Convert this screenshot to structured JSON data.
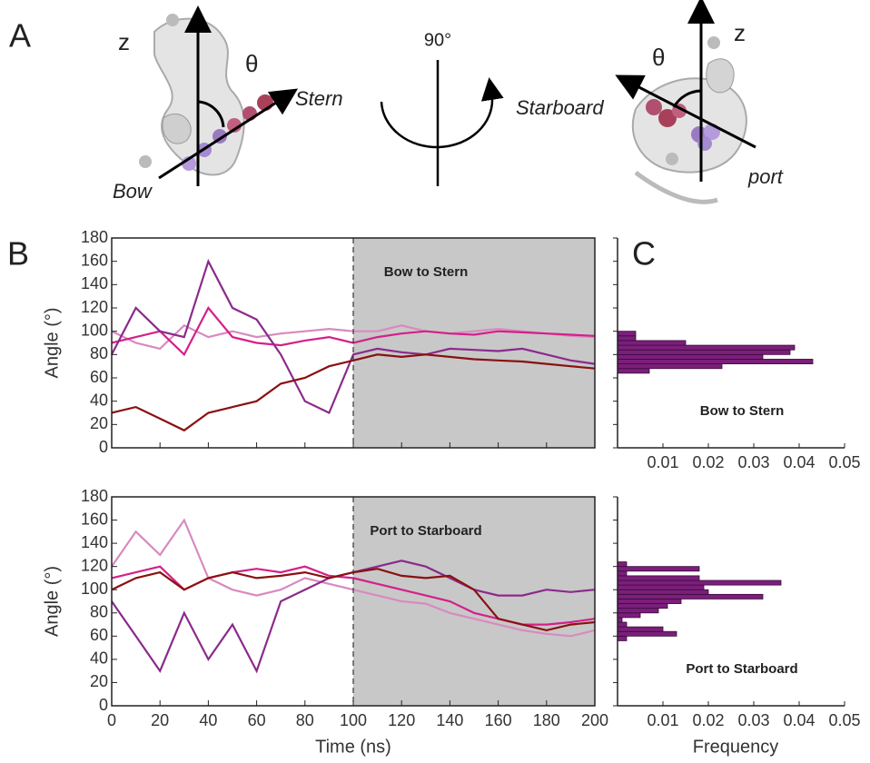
{
  "panel_labels": [
    "A",
    "B",
    "C"
  ],
  "panel_a": {
    "left": {
      "z": "z",
      "theta": "θ",
      "stern": "Stern",
      "bow": "Bow"
    },
    "rotation": "90°",
    "right": {
      "z": "z",
      "theta": "θ",
      "starboard": "Starboard",
      "port": "port"
    }
  },
  "chart_data": [
    {
      "type": "line",
      "annotation": "Bow to Stern",
      "y_label": "Angle (°)",
      "x": [
        0,
        10,
        20,
        30,
        40,
        50,
        60,
        70,
        80,
        90,
        100,
        110,
        120,
        130,
        140,
        150,
        160,
        170,
        180,
        190,
        200
      ],
      "series": [
        {
          "color": "#d88ac0",
          "values": [
            100,
            90,
            85,
            105,
            95,
            100,
            95,
            98,
            100,
            102,
            100,
            100,
            105,
            100,
            98,
            100,
            102,
            100,
            98,
            96,
            95
          ]
        },
        {
          "color": "#d4208a",
          "values": [
            90,
            95,
            100,
            80,
            120,
            95,
            90,
            88,
            92,
            95,
            90,
            95,
            98,
            100,
            98,
            97,
            100,
            99,
            98,
            97,
            96
          ]
        },
        {
          "color": "#8b2a8b",
          "values": [
            80,
            120,
            100,
            95,
            160,
            120,
            110,
            80,
            40,
            30,
            80,
            85,
            82,
            80,
            85,
            84,
            83,
            85,
            80,
            75,
            72
          ]
        },
        {
          "color": "#8b1010",
          "values": [
            30,
            35,
            25,
            15,
            30,
            35,
            40,
            55,
            60,
            70,
            75,
            80,
            78,
            80,
            78,
            76,
            75,
            74,
            72,
            70,
            68
          ]
        }
      ],
      "xlim": [
        0,
        200
      ],
      "ylim": [
        0,
        180
      ],
      "xticks": [
        0,
        20,
        40,
        60,
        80,
        100,
        120,
        140,
        160,
        180,
        200
      ],
      "yticks": [
        0,
        20,
        40,
        60,
        80,
        100,
        120,
        140,
        160,
        180
      ],
      "show_xtick_labels": false,
      "shade": [
        100,
        200
      ]
    },
    {
      "type": "histogram",
      "annotation": "Bow to Stern",
      "color": "#7b1f7b",
      "bins": [
        64,
        68,
        72,
        76,
        80,
        84,
        88,
        92,
        96,
        100
      ],
      "counts": [
        0.007,
        0.023,
        0.043,
        0.032,
        0.038,
        0.039,
        0.015,
        0.004,
        0.004
      ],
      "xlim": [
        0,
        0.05
      ],
      "ylim": [
        0,
        180
      ],
      "xticks": [
        0.01,
        0.02,
        0.03,
        0.04,
        0.05
      ],
      "yticks": [
        0,
        20,
        40,
        60,
        80,
        100,
        120,
        140,
        160,
        180
      ]
    },
    {
      "type": "line",
      "annotation": "Port to Starboard",
      "y_label": "Angle (°)",
      "x_label": "Time (ns)",
      "x": [
        0,
        10,
        20,
        30,
        40,
        50,
        60,
        70,
        80,
        90,
        100,
        110,
        120,
        130,
        140,
        150,
        160,
        170,
        180,
        190,
        200
      ],
      "series": [
        {
          "color": "#d88ac0",
          "values": [
            120,
            150,
            130,
            160,
            110,
            100,
            95,
            100,
            110,
            105,
            100,
            95,
            90,
            88,
            80,
            75,
            70,
            65,
            62,
            60,
            65
          ]
        },
        {
          "color": "#d4208a",
          "values": [
            110,
            115,
            120,
            100,
            110,
            115,
            118,
            115,
            120,
            112,
            110,
            105,
            100,
            95,
            90,
            80,
            75,
            70,
            70,
            72,
            75
          ]
        },
        {
          "color": "#8b2a8b",
          "values": [
            90,
            60,
            30,
            80,
            40,
            70,
            30,
            90,
            100,
            110,
            115,
            120,
            125,
            120,
            110,
            100,
            95,
            95,
            100,
            98,
            100
          ]
        },
        {
          "color": "#8b1010",
          "values": [
            100,
            110,
            115,
            100,
            110,
            115,
            110,
            112,
            115,
            110,
            115,
            118,
            112,
            110,
            112,
            100,
            75,
            70,
            65,
            70,
            72
          ]
        }
      ],
      "xlim": [
        0,
        200
      ],
      "ylim": [
        0,
        180
      ],
      "xticks": [
        0,
        20,
        40,
        60,
        80,
        100,
        120,
        140,
        160,
        180,
        200
      ],
      "yticks": [
        0,
        20,
        40,
        60,
        80,
        100,
        120,
        140,
        160,
        180
      ],
      "show_xtick_labels": true,
      "shade": [
        100,
        200
      ]
    },
    {
      "type": "histogram",
      "annotation": "Port to Starboard",
      "x_label": "Frequency",
      "color": "#7b1f7b",
      "bins": [
        56,
        60,
        64,
        68,
        72,
        76,
        80,
        84,
        88,
        92,
        96,
        100,
        104,
        108,
        112,
        116,
        120,
        124
      ],
      "counts": [
        0.002,
        0.013,
        0.01,
        0.002,
        0.001,
        0.005,
        0.009,
        0.011,
        0.014,
        0.032,
        0.02,
        0.019,
        0.036,
        0.018,
        0.002,
        0.018,
        0.002
      ],
      "xlim": [
        0,
        0.05
      ],
      "ylim": [
        0,
        180
      ],
      "xticks": [
        0.01,
        0.02,
        0.03,
        0.04,
        0.05
      ],
      "yticks": [
        0,
        20,
        40,
        60,
        80,
        100,
        120,
        140,
        160,
        180
      ]
    }
  ]
}
